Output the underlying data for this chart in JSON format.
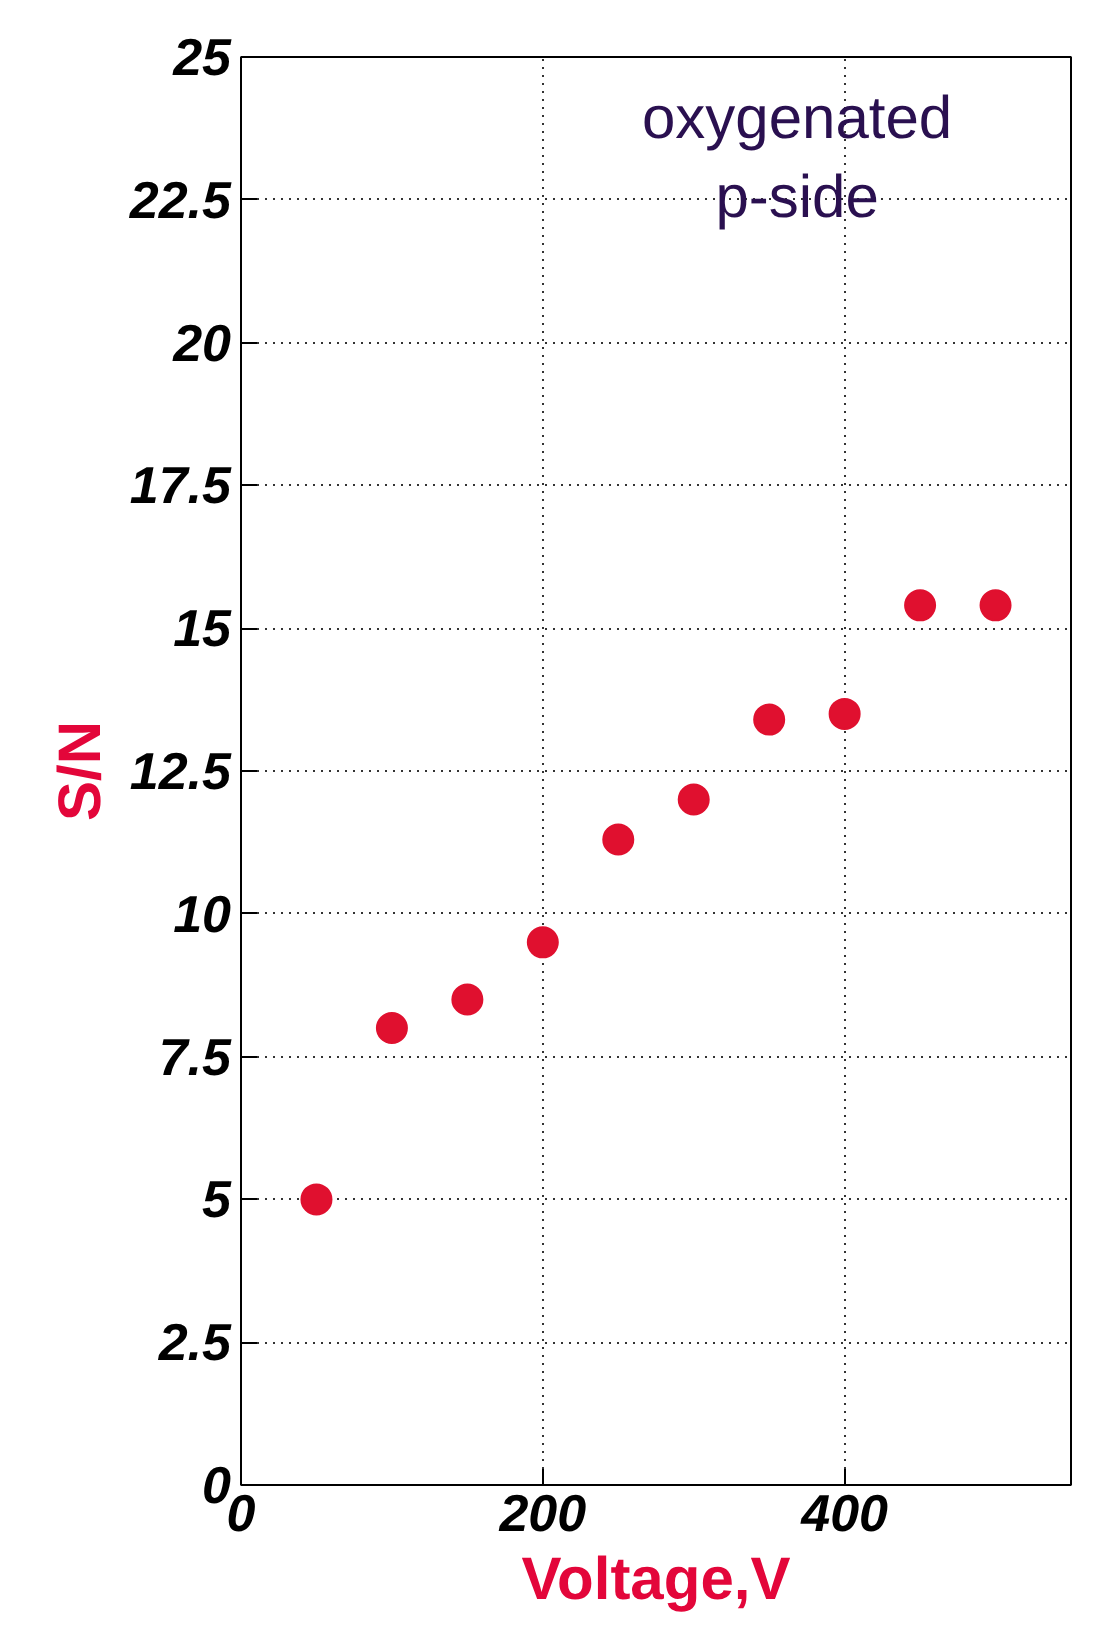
{
  "chart_data": {
    "type": "scatter",
    "xlabel": "Voltage,V",
    "ylabel": "S/N",
    "annotations": [
      "oxygenated\np-side"
    ],
    "x": [
      50,
      100,
      150,
      200,
      250,
      300,
      350,
      400,
      450,
      500
    ],
    "series": [
      {
        "color": "#e0102f",
        "values": [
          5,
          8,
          8.5,
          9.5,
          11.3,
          12,
          13.4,
          13.5,
          15.4,
          15.4
        ]
      }
    ],
    "xlim": [
      0,
      550
    ],
    "xticks": [
      0,
      200,
      400
    ],
    "ylim": [
      0,
      25
    ],
    "yticks": [
      0,
      2.5,
      5,
      7.5,
      10,
      12.5,
      15,
      17.5,
      20,
      22.5,
      25
    ],
    "grid": true,
    "marker": "circle"
  }
}
